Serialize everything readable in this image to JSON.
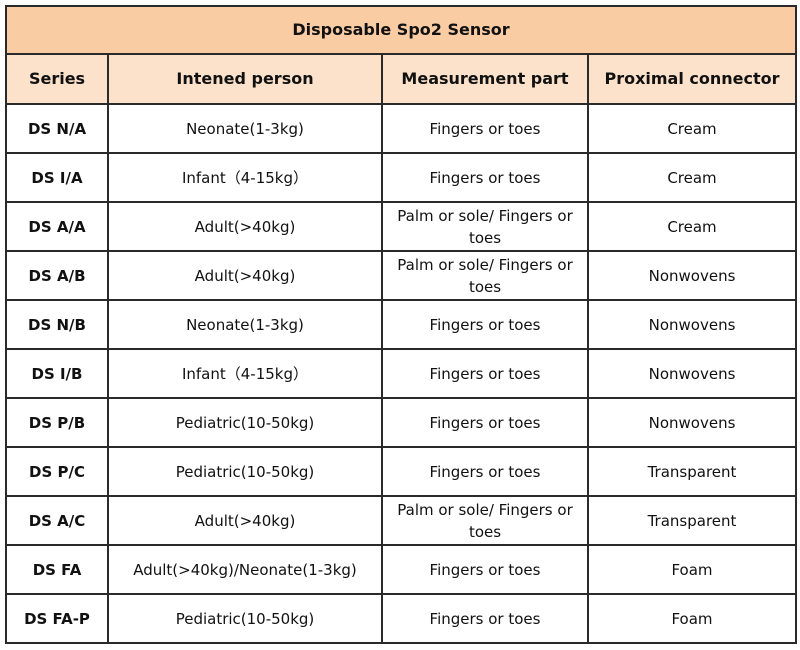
{
  "title": "Disposable Spo2 Sensor",
  "columns": [
    "Series",
    "Intened person",
    "Measurement part",
    "Proximal connector"
  ],
  "rows": [
    [
      "DS N/A",
      "Neonate(1-3kg)",
      "Fingers or toes",
      "Cream"
    ],
    [
      "DS I/A",
      "Infant（4-15kg）",
      "Fingers or toes",
      "Cream"
    ],
    [
      "DS A/A",
      "Adult(>40kg)",
      "Palm or sole/   Fingers or toes",
      "Cream"
    ],
    [
      "DS A/B",
      "Adult(>40kg)",
      "Palm or sole/   Fingers or toes",
      "Nonwovens"
    ],
    [
      "DS N/B",
      "Neonate(1-3kg)",
      "Fingers or toes",
      "Nonwovens"
    ],
    [
      "DS I/B",
      "Infant（4-15kg）",
      "Fingers or toes",
      "Nonwovens"
    ],
    [
      "DS P/B",
      "Pediatric(10-50kg)",
      "Fingers or toes",
      "Nonwovens"
    ],
    [
      "DS P/C",
      "Pediatric(10-50kg)",
      "Fingers or toes",
      "Transparent"
    ],
    [
      "DS A/C",
      "Adult(>40kg)",
      "Palm or sole/   Fingers or toes",
      "Transparent"
    ],
    [
      "DS FA",
      "Adult(>40kg)/Neonate(1-3kg)",
      "Fingers or toes",
      "Foam"
    ],
    [
      "DS FA-P",
      "Pediatric(10-50kg)",
      "Fingers or toes",
      "Foam"
    ]
  ],
  "colors": {
    "title_bg": "#f9cca3",
    "header_bg": "#fce2cb",
    "border": "#2a2a2a"
  }
}
